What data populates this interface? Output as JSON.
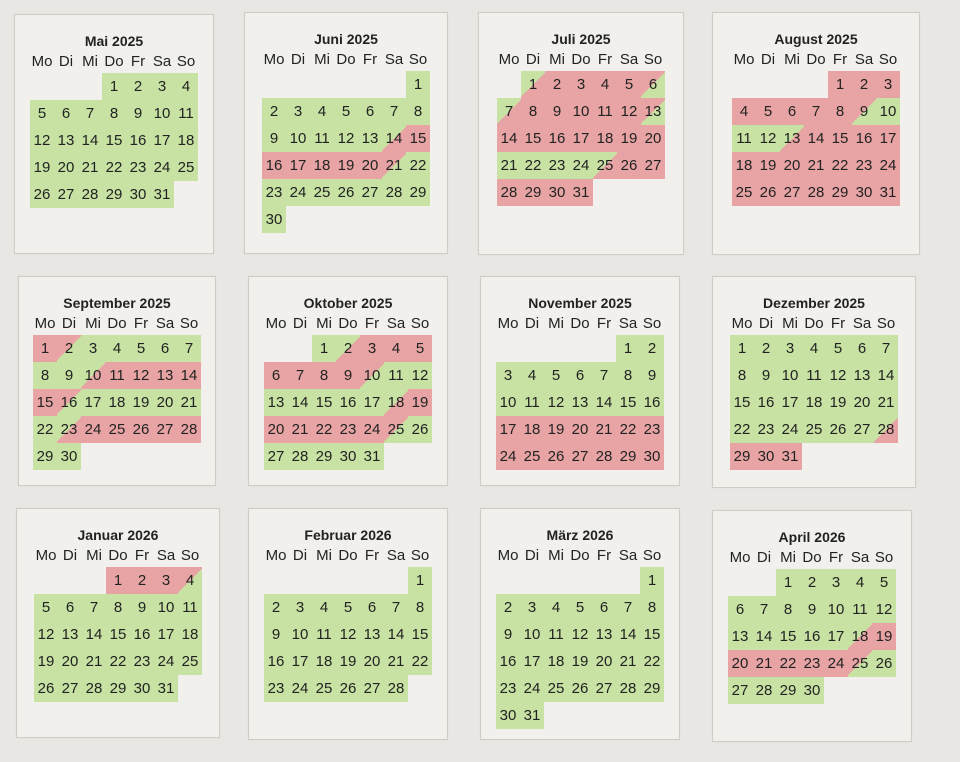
{
  "weekdays": [
    "Mo",
    "Di",
    "Mi",
    "Do",
    "Fr",
    "Sa",
    "So"
  ],
  "status_colors": {
    "available": "#c7e2a3",
    "booked": "#e8a4a4"
  },
  "months": [
    {
      "title": "Mai 2025",
      "start_weekday": 3,
      "days": [
        "g",
        "g",
        "g",
        "g",
        "g",
        "g",
        "g",
        "g",
        "g",
        "g",
        "g",
        "g",
        "g",
        "g",
        "g",
        "g",
        "g",
        "g",
        "g",
        "g",
        "g",
        "g",
        "g",
        "g",
        "g",
        "g",
        "g",
        "g",
        "g",
        "g",
        "g"
      ]
    },
    {
      "title": "Juni 2025",
      "start_weekday": 6,
      "days": [
        "g",
        "g",
        "g",
        "g",
        "g",
        "g",
        "g",
        "g",
        "g",
        "g",
        "g",
        "g",
        "g",
        "gr",
        "r",
        "r",
        "r",
        "r",
        "r",
        "r",
        "rg",
        "g",
        "g",
        "g",
        "g",
        "g",
        "g",
        "g",
        "g",
        "g"
      ]
    },
    {
      "title": "Juli 2025",
      "start_weekday": 1,
      "days": [
        "gr",
        "r",
        "r",
        "r",
        "r",
        "rg",
        "gr",
        "r",
        "r",
        "r",
        "r",
        "r",
        "rg",
        "r",
        "r",
        "r",
        "r",
        "r",
        "r",
        "r",
        "g",
        "g",
        "g",
        "g",
        "gr",
        "r",
        "r",
        "r",
        "r",
        "r",
        "r"
      ]
    },
    {
      "title": "August 2025",
      "start_weekday": 4,
      "days": [
        "r",
        "r",
        "r",
        "r",
        "r",
        "r",
        "r",
        "r",
        "rg",
        "g",
        "g",
        "g",
        "gr",
        "r",
        "r",
        "r",
        "r",
        "r",
        "r",
        "r",
        "r",
        "r",
        "r",
        "r",
        "r",
        "r",
        "r",
        "r",
        "r",
        "r",
        "r"
      ]
    },
    {
      "title": "September 2025",
      "start_weekday": 0,
      "days": [
        "r",
        "rg",
        "g",
        "g",
        "g",
        "g",
        "g",
        "g",
        "g",
        "gr",
        "r",
        "r",
        "r",
        "r",
        "r",
        "rg",
        "g",
        "g",
        "g",
        "g",
        "g",
        "g",
        "gr",
        "r",
        "r",
        "r",
        "r",
        "r",
        "g",
        "g"
      ]
    },
    {
      "title": "Oktober 2025",
      "start_weekday": 2,
      "days": [
        "g",
        "gr",
        "r",
        "r",
        "r",
        "r",
        "r",
        "r",
        "r",
        "rg",
        "g",
        "g",
        "g",
        "g",
        "g",
        "g",
        "g",
        "gr",
        "r",
        "r",
        "r",
        "r",
        "r",
        "r",
        "rg",
        "g",
        "g",
        "g",
        "g",
        "g",
        "g"
      ]
    },
    {
      "title": "November 2025",
      "start_weekday": 5,
      "days": [
        "g",
        "g",
        "g",
        "g",
        "g",
        "g",
        "g",
        "g",
        "g",
        "g",
        "g",
        "g",
        "g",
        "g",
        "g",
        "g",
        "r",
        "r",
        "r",
        "r",
        "r",
        "r",
        "r",
        "r",
        "r",
        "r",
        "r",
        "r",
        "r",
        "r"
      ]
    },
    {
      "title": "Dezember 2025",
      "start_weekday": 0,
      "days": [
        "g",
        "g",
        "g",
        "g",
        "g",
        "g",
        "g",
        "g",
        "g",
        "g",
        "g",
        "g",
        "g",
        "g",
        "g",
        "g",
        "g",
        "g",
        "g",
        "g",
        "g",
        "g",
        "g",
        "g",
        "g",
        "g",
        "g",
        "gr",
        "r",
        "r",
        "r"
      ]
    },
    {
      "title": "Januar 2026",
      "start_weekday": 3,
      "days": [
        "r",
        "r",
        "r",
        "rg",
        "g",
        "g",
        "g",
        "g",
        "g",
        "g",
        "g",
        "g",
        "g",
        "g",
        "g",
        "g",
        "g",
        "g",
        "g",
        "g",
        "g",
        "g",
        "g",
        "g",
        "g",
        "g",
        "g",
        "g",
        "g",
        "g",
        "g"
      ]
    },
    {
      "title": "Februar 2026",
      "start_weekday": 6,
      "days": [
        "g",
        "g",
        "g",
        "g",
        "g",
        "g",
        "g",
        "g",
        "g",
        "g",
        "g",
        "g",
        "g",
        "g",
        "g",
        "g",
        "g",
        "g",
        "g",
        "g",
        "g",
        "g",
        "g",
        "g",
        "g",
        "g",
        "g",
        "g"
      ]
    },
    {
      "title": "März 2026",
      "start_weekday": 6,
      "days": [
        "g",
        "g",
        "g",
        "g",
        "g",
        "g",
        "g",
        "g",
        "g",
        "g",
        "g",
        "g",
        "g",
        "g",
        "g",
        "g",
        "g",
        "g",
        "g",
        "g",
        "g",
        "g",
        "g",
        "g",
        "g",
        "g",
        "g",
        "g",
        "g",
        "g",
        "g"
      ]
    },
    {
      "title": "April 2026",
      "start_weekday": 2,
      "days": [
        "g",
        "g",
        "g",
        "g",
        "g",
        "g",
        "g",
        "g",
        "g",
        "g",
        "g",
        "g",
        "g",
        "g",
        "g",
        "g",
        "g",
        "gr",
        "r",
        "r",
        "r",
        "r",
        "r",
        "r",
        "rg",
        "g",
        "g",
        "g",
        "g",
        "g"
      ]
    }
  ]
}
